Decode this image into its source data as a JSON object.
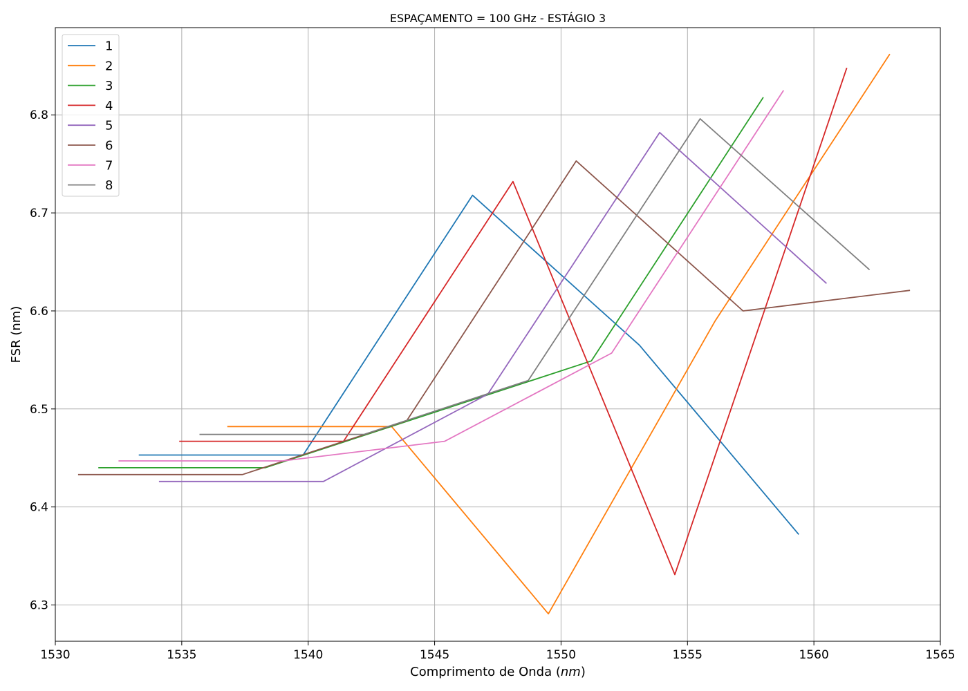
{
  "chart_data": {
    "type": "line",
    "title": "ESPAÇAMENTO = 100 GHz - ESTÁGIO 3",
    "xlabel_prefix": "Comprimento de Onda (",
    "xlabel_unit": "nm",
    "xlabel_suffix": ")",
    "ylabel": "FSR (nm)",
    "xlim": [
      1530,
      1565
    ],
    "ylim": [
      6.263,
      6.889
    ],
    "xticks": [
      "1530",
      "1535",
      "1540",
      "1545",
      "1550",
      "1555",
      "1560",
      "1565"
    ],
    "yticks": [
      "6.3",
      "6.4",
      "6.5",
      "6.6",
      "6.7",
      "6.8"
    ],
    "grid": true,
    "legend_position": "top-left",
    "series": [
      {
        "name": "1",
        "color": "#1f77b4",
        "x": [
          1533.3,
          1539.8,
          1546.5,
          1553.1,
          1559.4
        ],
        "y": [
          6.453,
          6.453,
          6.718,
          6.565,
          6.372
        ]
      },
      {
        "name": "2",
        "color": "#ff7f0e",
        "x": [
          1536.8,
          1543.3,
          1549.5,
          1556.1,
          1563.0
        ],
        "y": [
          6.482,
          6.482,
          6.291,
          6.59,
          6.862
        ]
      },
      {
        "name": "3",
        "color": "#2ca02c",
        "x": [
          1531.7,
          1538.3,
          1551.2,
          1558.0
        ],
        "y": [
          6.44,
          6.44,
          6.549,
          6.818
        ]
      },
      {
        "name": "4",
        "color": "#d62728",
        "x": [
          1534.9,
          1541.4,
          1548.1,
          1554.5,
          1561.3
        ],
        "y": [
          6.467,
          6.467,
          6.732,
          6.331,
          6.848
        ]
      },
      {
        "name": "5",
        "color": "#9467bd",
        "x": [
          1534.1,
          1540.6,
          1547.1,
          1553.9,
          1560.5
        ],
        "y": [
          6.426,
          6.426,
          6.515,
          6.782,
          6.628
        ]
      },
      {
        "name": "6",
        "color": "#8c564b",
        "x": [
          1530.9,
          1537.4,
          1543.9,
          1550.6,
          1557.2,
          1563.8
        ],
        "y": [
          6.433,
          6.433,
          6.488,
          6.753,
          6.6,
          6.621
        ]
      },
      {
        "name": "7",
        "color": "#e377c2",
        "x": [
          1532.5,
          1539.0,
          1545.4,
          1552.0,
          1558.8
        ],
        "y": [
          6.447,
          6.447,
          6.467,
          6.557,
          6.825
        ]
      },
      {
        "name": "8",
        "color": "#7f7f7f",
        "x": [
          1535.7,
          1542.2,
          1548.7,
          1555.5,
          1562.2
        ],
        "y": [
          6.474,
          6.474,
          6.529,
          6.796,
          6.642
        ]
      }
    ]
  }
}
